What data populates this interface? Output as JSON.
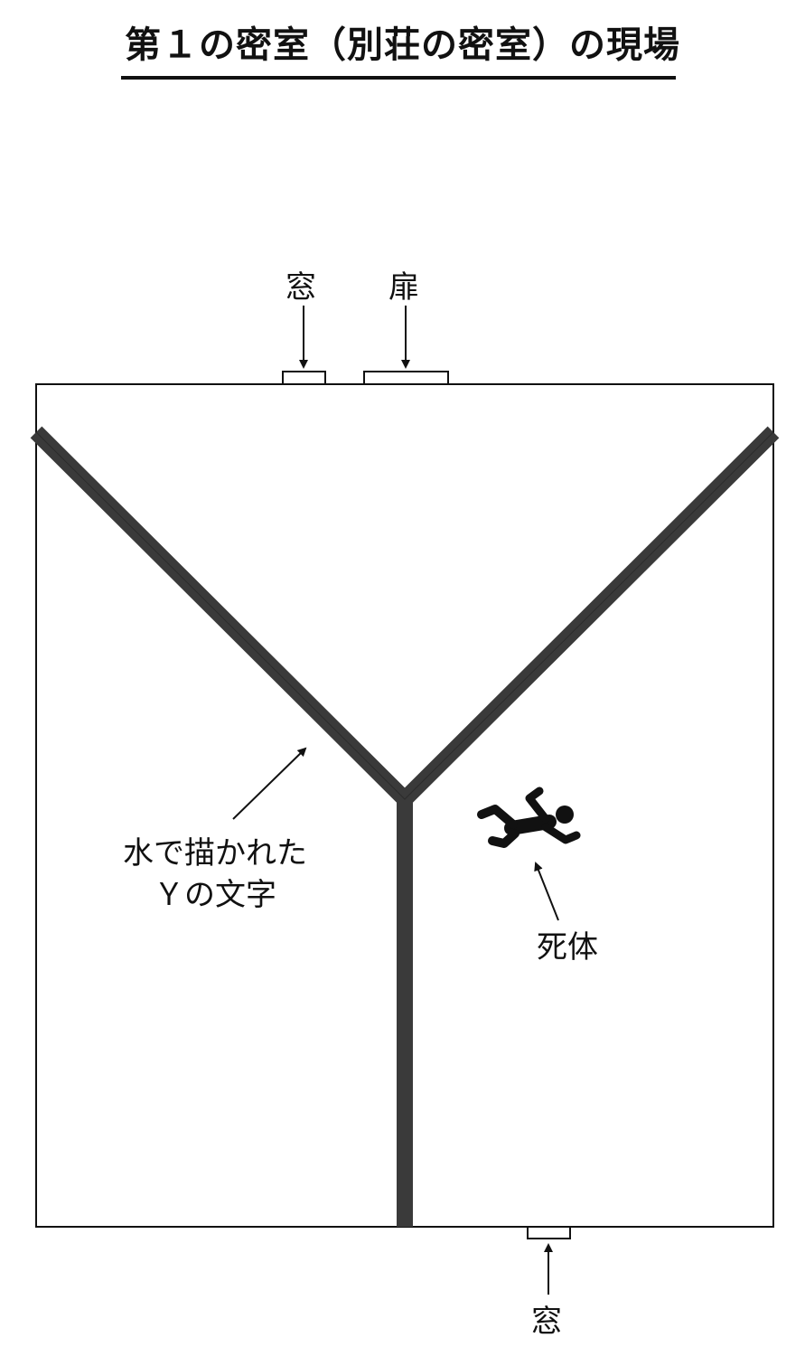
{
  "title": "第１の密室（別荘の密室）の現場",
  "labels": {
    "window_top": "窓",
    "door": "扉",
    "water_y_line1": "水で描かれた",
    "water_y_line2": "Ｙの文字",
    "body": "死体",
    "window_bottom": "窓"
  },
  "colors": {
    "ink": "#111111",
    "water_stroke": "#3a3a3a"
  },
  "icons": {
    "body": "fallen-person-icon"
  }
}
